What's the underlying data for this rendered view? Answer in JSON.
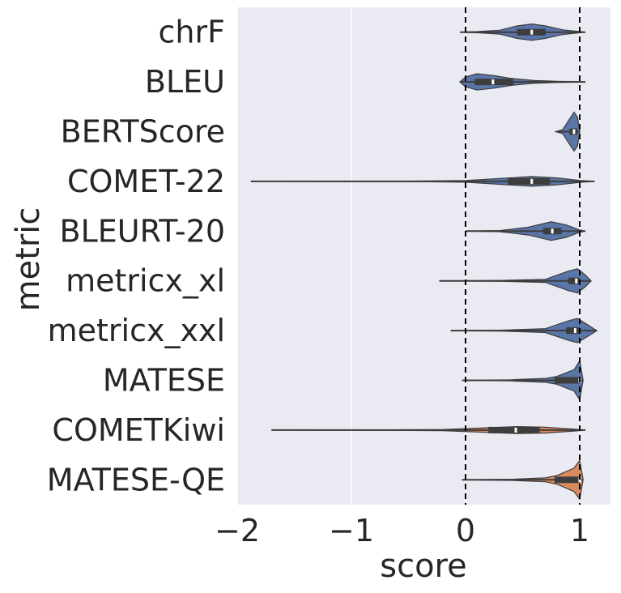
{
  "chart_data": {
    "type": "violin",
    "orientation": "horizontal",
    "xlabel": "score",
    "ylabel": "metric",
    "xlim": [
      -2.0,
      1.27
    ],
    "x_ticks": [
      -2,
      -1,
      0,
      1
    ],
    "x_tick_labels": [
      "−2",
      "−1",
      "0",
      "1"
    ],
    "reference_lines": [
      0,
      1
    ],
    "grid": true,
    "background": "#eaeaf2",
    "colors": {
      "reference": "#5a75a8",
      "qe": "#d98b5f",
      "box": "#3d3d3d",
      "line": "#000000"
    },
    "categories": [
      "chrF",
      "BLEU",
      "BERTScore",
      "COMET-22",
      "BLEURT-20",
      "metricx_xl",
      "metricx_xxl",
      "MATESE",
      "COMETKiwi",
      "MATESE-QE"
    ],
    "series": [
      {
        "category": "chrF",
        "group": "reference",
        "min": -0.05,
        "q1": 0.45,
        "median": 0.58,
        "q3": 0.7,
        "max": 1.05,
        "density": [
          [
            -0.05,
            0.0
          ],
          [
            0.1,
            0.03
          ],
          [
            0.3,
            0.1
          ],
          [
            0.45,
            0.32
          ],
          [
            0.58,
            0.42
          ],
          [
            0.7,
            0.32
          ],
          [
            0.85,
            0.12
          ],
          [
            1.0,
            0.03
          ],
          [
            1.05,
            0.0
          ]
        ]
      },
      {
        "category": "BLEU",
        "group": "reference",
        "min": -0.05,
        "q1": 0.08,
        "median": 0.24,
        "q3": 0.42,
        "max": 1.05,
        "density": [
          [
            -0.05,
            0.0
          ],
          [
            0.0,
            0.25
          ],
          [
            0.1,
            0.42
          ],
          [
            0.25,
            0.32
          ],
          [
            0.4,
            0.18
          ],
          [
            0.6,
            0.07
          ],
          [
            0.8,
            0.03
          ],
          [
            1.0,
            0.01
          ],
          [
            1.05,
            0.0
          ]
        ]
      },
      {
        "category": "BERTScore",
        "group": "reference",
        "min": 0.79,
        "q1": 0.91,
        "median": 0.95,
        "q3": 0.98,
        "max": 1.0,
        "density": [
          [
            0.79,
            0.0
          ],
          [
            0.85,
            0.1
          ],
          [
            0.9,
            0.55
          ],
          [
            0.95,
            1.0
          ],
          [
            0.98,
            0.75
          ],
          [
            1.0,
            0.0
          ]
        ]
      },
      {
        "category": "COMET-22",
        "group": "reference",
        "min": -1.88,
        "q1": 0.37,
        "median": 0.58,
        "q3": 0.74,
        "max": 1.13,
        "density": [
          [
            -1.88,
            0.0
          ],
          [
            -0.5,
            0.01
          ],
          [
            0.0,
            0.04
          ],
          [
            0.3,
            0.15
          ],
          [
            0.58,
            0.25
          ],
          [
            0.8,
            0.18
          ],
          [
            1.0,
            0.05
          ],
          [
            1.13,
            0.0
          ]
        ]
      },
      {
        "category": "BLEURT-20",
        "group": "reference",
        "min": 0.0,
        "q1": 0.68,
        "median": 0.76,
        "q3": 0.84,
        "max": 1.05,
        "density": [
          [
            0.0,
            0.0
          ],
          [
            0.3,
            0.03
          ],
          [
            0.55,
            0.2
          ],
          [
            0.75,
            0.48
          ],
          [
            0.88,
            0.32
          ],
          [
            1.0,
            0.06
          ],
          [
            1.05,
            0.0
          ]
        ]
      },
      {
        "category": "metricx_xl",
        "group": "reference",
        "min": -0.23,
        "q1": 0.9,
        "median": 0.97,
        "q3": 1.0,
        "max": 1.1,
        "density": [
          [
            -0.23,
            0.0
          ],
          [
            0.3,
            0.02
          ],
          [
            0.7,
            0.08
          ],
          [
            0.9,
            0.5
          ],
          [
            0.98,
            0.62
          ],
          [
            1.05,
            0.3
          ],
          [
            1.1,
            0.0
          ]
        ]
      },
      {
        "category": "metricx_xxl",
        "group": "reference",
        "min": -0.13,
        "q1": 0.88,
        "median": 0.96,
        "q3": 1.0,
        "max": 1.15,
        "density": [
          [
            -0.13,
            0.0
          ],
          [
            0.3,
            0.02
          ],
          [
            0.7,
            0.1
          ],
          [
            0.9,
            0.5
          ],
          [
            0.98,
            0.62
          ],
          [
            1.07,
            0.3
          ],
          [
            1.15,
            0.0
          ]
        ]
      },
      {
        "category": "MATESE",
        "group": "reference",
        "min": -0.03,
        "q1": 0.78,
        "median": 1.0,
        "q3": 1.0,
        "max": 1.03,
        "density": [
          [
            -0.03,
            0.0
          ],
          [
            0.4,
            0.03
          ],
          [
            0.7,
            0.1
          ],
          [
            0.8,
            0.2
          ],
          [
            0.95,
            0.55
          ],
          [
            1.0,
            1.0
          ],
          [
            1.03,
            0.0
          ]
        ]
      },
      {
        "category": "COMETKiwi",
        "group": "qe",
        "min": -1.7,
        "q1": 0.2,
        "median": 0.44,
        "q3": 0.65,
        "max": 1.05,
        "density": [
          [
            -1.7,
            0.0
          ],
          [
            -0.8,
            0.01
          ],
          [
            -0.2,
            0.03
          ],
          [
            0.2,
            0.12
          ],
          [
            0.45,
            0.18
          ],
          [
            0.7,
            0.15
          ],
          [
            0.95,
            0.05
          ],
          [
            1.05,
            0.0
          ]
        ]
      },
      {
        "category": "MATESE-QE",
        "group": "qe",
        "min": -0.03,
        "q1": 0.78,
        "median": 1.0,
        "q3": 1.0,
        "max": 1.03,
        "density": [
          [
            -0.03,
            0.0
          ],
          [
            0.4,
            0.03
          ],
          [
            0.7,
            0.1
          ],
          [
            0.8,
            0.22
          ],
          [
            0.95,
            0.6
          ],
          [
            1.0,
            1.0
          ],
          [
            1.03,
            0.0
          ]
        ]
      }
    ]
  }
}
